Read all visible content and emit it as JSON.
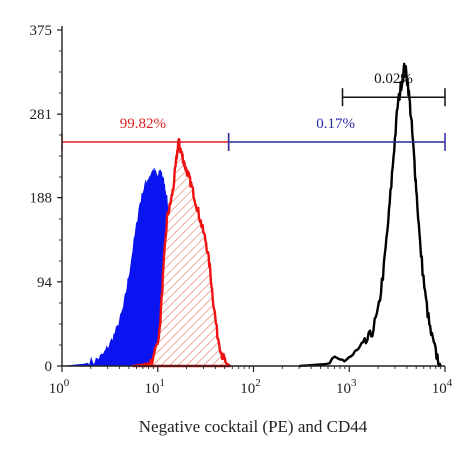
{
  "chart_data": {
    "type": "area",
    "title": "",
    "xlabel": "Negative cocktail (PE) and CD44",
    "ylabel": "",
    "x_scale": "log",
    "xlim": [
      1,
      10000
    ],
    "ylim": [
      0,
      375
    ],
    "x_ticks": [
      {
        "value": 1,
        "base": "10",
        "exp": "0"
      },
      {
        "value": 10,
        "base": "10",
        "exp": "1"
      },
      {
        "value": 100,
        "base": "10",
        "exp": "2"
      },
      {
        "value": 1000,
        "base": "10",
        "exp": "3"
      },
      {
        "value": 10000,
        "base": "10",
        "exp": "4"
      }
    ],
    "y_ticks": [
      {
        "value": 0,
        "label": "0"
      },
      {
        "value": 94,
        "label": "94"
      },
      {
        "value": 188,
        "label": "188"
      },
      {
        "value": 281,
        "label": "281"
      },
      {
        "value": 375,
        "label": "375"
      }
    ],
    "grid": false,
    "colors": {
      "blue_fill": "#0a14f0",
      "red_outline": "#ee1111",
      "red_hatch": "#e8866e",
      "black_outline": "#000000",
      "red_gate": "#dd2222",
      "blue_gate": "#2a2aa0",
      "black_gate": "#111111"
    },
    "series": [
      {
        "style": "filled",
        "color": "#0a14f0",
        "x": [
          1.1,
          1.7,
          2.2,
          2.7,
          3.2,
          3.8,
          4.4,
          5.0,
          5.8,
          6.5,
          7.2,
          8.0,
          9.0,
          10.0,
          10.8,
          11.5,
          12.3,
          13.2,
          14.2,
          15.2,
          16.3,
          17.5,
          18.8,
          20.0,
          21.5
        ],
        "y": [
          0,
          2,
          5,
          12,
          25,
          42,
          65,
          100,
          145,
          180,
          198,
          210,
          218,
          210,
          218,
          205,
          190,
          165,
          130,
          95,
          60,
          28,
          10,
          3,
          0
        ]
      },
      {
        "style": "hatched",
        "color": "#ee1111",
        "x": [
          5.5,
          7.5,
          9.0,
          10.5,
          11.5,
          12.5,
          13.5,
          14.5,
          15.5,
          16.5,
          17.2,
          18.0,
          19.0,
          20.5,
          22.0,
          24.0,
          26.5,
          29.0,
          32.0,
          35.0,
          38.0,
          42.0,
          47.0,
          52.0,
          57.0
        ],
        "y": [
          0,
          2,
          8,
          40,
          110,
          165,
          180,
          198,
          226,
          252,
          242,
          235,
          225,
          215,
          205,
          190,
          172,
          155,
          138,
          110,
          72,
          35,
          12,
          3,
          0
        ]
      },
      {
        "style": "outline",
        "color": "#000000",
        "x": [
          300,
          550,
          800,
          1100,
          1400,
          1700,
          2000,
          2300,
          2600,
          2900,
          3200,
          3500,
          3800,
          4100,
          4400,
          4700,
          5000,
          5500,
          6200,
          7000,
          8000,
          9000
        ],
        "y": [
          0,
          2,
          5,
          12,
          22,
          35,
          60,
          110,
          170,
          235,
          290,
          315,
          335,
          315,
          280,
          240,
          200,
          135,
          80,
          40,
          15,
          0
        ]
      }
    ],
    "gates": [
      {
        "name": "red",
        "x_range": [
          1,
          55
        ],
        "y": 250,
        "label": "99.82%",
        "label_x": 7,
        "color": "#dd2222"
      },
      {
        "name": "blue",
        "x_range": [
          55,
          10000
        ],
        "y": 250,
        "label": "0.17%",
        "label_x": 720,
        "color": "#2a2aa0"
      },
      {
        "name": "black",
        "x_range": [
          850,
          10000
        ],
        "y": 300,
        "label": "0.02%",
        "label_x": 2900,
        "color": "#111111"
      }
    ]
  }
}
